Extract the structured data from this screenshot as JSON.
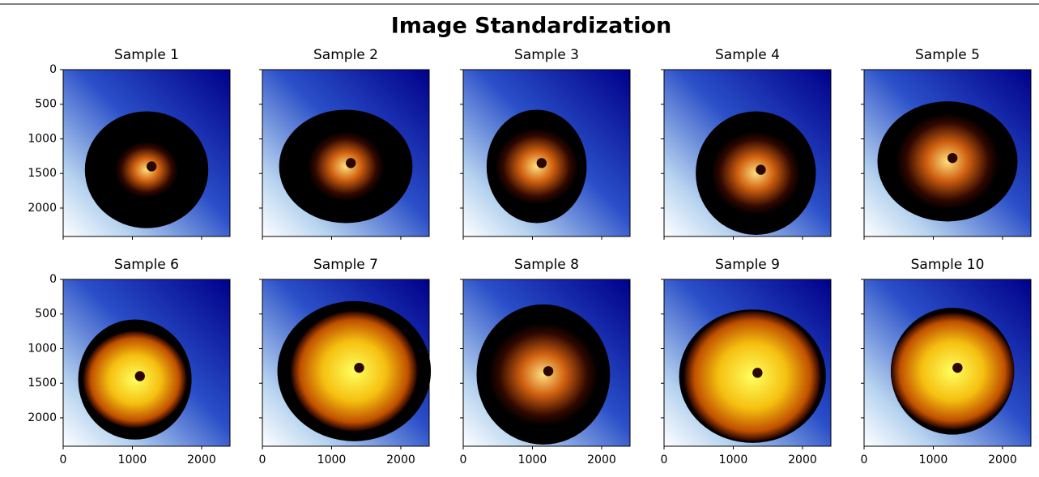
{
  "title": "Image Standardization",
  "chart_data": [
    {
      "type": "image",
      "title": "Sample 1",
      "xlim": [
        0,
        2410
      ],
      "ylim": [
        2410,
        0
      ],
      "xticks": [
        0,
        1000,
        2000
      ],
      "yticks": [
        0,
        500,
        1000,
        1500,
        2000
      ]
    },
    {
      "type": "image",
      "title": "Sample 2",
      "xlim": [
        0,
        2410
      ],
      "ylim": [
        2410,
        0
      ],
      "xticks": [
        0,
        1000,
        2000
      ],
      "yticks": [
        0,
        500,
        1000,
        1500,
        2000
      ]
    },
    {
      "type": "image",
      "title": "Sample 3",
      "xlim": [
        0,
        2410
      ],
      "ylim": [
        2410,
        0
      ],
      "xticks": [
        0,
        1000,
        2000
      ],
      "yticks": [
        0,
        500,
        1000,
        1500,
        2000
      ]
    },
    {
      "type": "image",
      "title": "Sample 4",
      "xlim": [
        0,
        2410
      ],
      "ylim": [
        2410,
        0
      ],
      "xticks": [
        0,
        1000,
        2000
      ],
      "yticks": [
        0,
        500,
        1000,
        1500,
        2000
      ]
    },
    {
      "type": "image",
      "title": "Sample 5",
      "xlim": [
        0,
        2410
      ],
      "ylim": [
        2410,
        0
      ],
      "xticks": [
        0,
        1000,
        2000
      ],
      "yticks": [
        0,
        500,
        1000,
        1500,
        2000
      ]
    },
    {
      "type": "image",
      "title": "Sample 6",
      "xlim": [
        0,
        2410
      ],
      "ylim": [
        2410,
        0
      ],
      "xticks": [
        0,
        1000,
        2000
      ],
      "yticks": [
        0,
        500,
        1000,
        1500,
        2000
      ]
    },
    {
      "type": "image",
      "title": "Sample 7",
      "xlim": [
        0,
        2410
      ],
      "ylim": [
        2410,
        0
      ],
      "xticks": [
        0,
        1000,
        2000
      ],
      "yticks": [
        0,
        500,
        1000,
        1500,
        2000
      ]
    },
    {
      "type": "image",
      "title": "Sample 8",
      "xlim": [
        0,
        2410
      ],
      "ylim": [
        2410,
        0
      ],
      "xticks": [
        0,
        1000,
        2000
      ],
      "yticks": [
        0,
        500,
        1000,
        1500,
        2000
      ]
    },
    {
      "type": "image",
      "title": "Sample 9",
      "xlim": [
        0,
        2410
      ],
      "ylim": [
        2410,
        0
      ],
      "xticks": [
        0,
        1000,
        2000
      ],
      "yticks": [
        0,
        500,
        1000,
        1500,
        2000
      ]
    },
    {
      "type": "image",
      "title": "Sample 10",
      "xlim": [
        0,
        2410
      ],
      "ylim": [
        2410,
        0
      ],
      "xticks": [
        0,
        1000,
        2000
      ],
      "yticks": [
        0,
        500,
        1000,
        1500,
        2000
      ]
    }
  ]
}
